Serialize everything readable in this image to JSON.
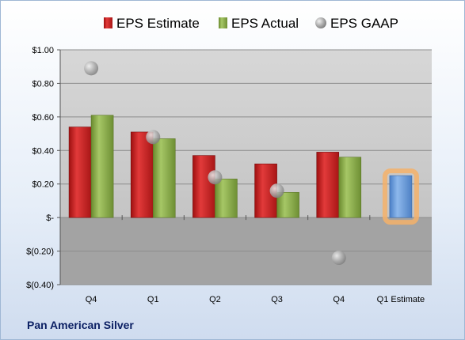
{
  "company": "Pan American Silver",
  "chart_data": {
    "type": "bar",
    "categories": [
      "Q4",
      "Q1",
      "Q2",
      "Q3",
      "Q4",
      "Q1 Estimate"
    ],
    "series": [
      {
        "name": "EPS Estimate",
        "values": [
          0.54,
          0.51,
          0.37,
          0.32,
          0.39,
          null
        ],
        "color": "#cc1f1f"
      },
      {
        "name": "EPS Actual",
        "values": [
          0.61,
          0.47,
          0.23,
          0.15,
          0.36,
          null
        ],
        "color": "#8bb04a"
      },
      {
        "name": "EPS GAAP",
        "type": "scatter",
        "values": [
          0.89,
          0.48,
          0.24,
          0.16,
          -0.24,
          null
        ],
        "color": "#b0b0b0"
      }
    ],
    "estimate": {
      "category": "Q1 Estimate",
      "value": 0.25,
      "color": "#6fa0de",
      "highlight": "#f4b26a"
    },
    "ylim": [
      -0.4,
      1.0
    ],
    "yticks": [
      1.0,
      0.8,
      0.6,
      0.4,
      0.2,
      0,
      -0.2,
      -0.4
    ],
    "ytick_labels": [
      "$1.00",
      "$0.80",
      "$0.60",
      "$0.40",
      "$0.20",
      "$-",
      "$(0.20)",
      "$(0.40)"
    ],
    "grid": true,
    "legend_position": "top"
  }
}
